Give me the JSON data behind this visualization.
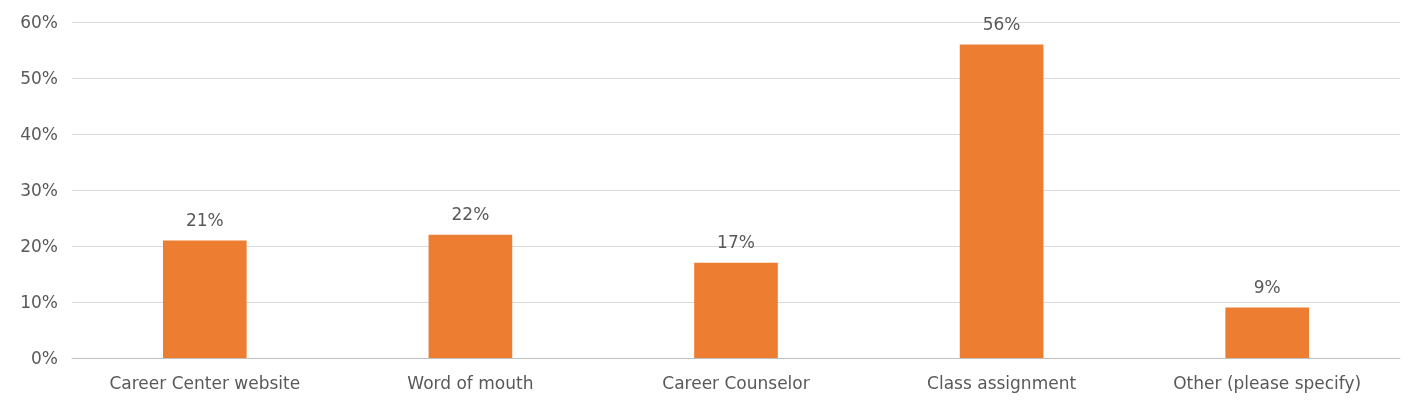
{
  "chart_data": {
    "type": "bar",
    "categories": [
      "Career Center website",
      "Word of mouth",
      "Career Counselor",
      "Class assignment",
      "Other (please specify)"
    ],
    "values": [
      21,
      22,
      17,
      56,
      9
    ],
    "color": "#ed7d31",
    "ylim": [
      0,
      60
    ],
    "yticks": [
      {
        "value": 0,
        "label": "0%"
      },
      {
        "value": 10,
        "label": "10%"
      },
      {
        "value": 20,
        "label": "20%"
      },
      {
        "value": 30,
        "label": "30%"
      },
      {
        "value": 40,
        "label": "40%"
      },
      {
        "value": 50,
        "label": "50%"
      },
      {
        "value": 60,
        "label": "60%"
      }
    ],
    "value_labels": [
      "21%",
      "22%",
      "17%",
      "56%",
      "9%"
    ],
    "grid": "y"
  }
}
